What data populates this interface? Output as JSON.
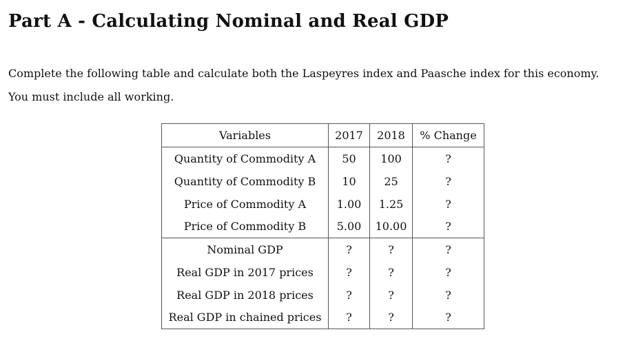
{
  "heading": "Part A - Calculating Nominal and Real GDP",
  "paragraphs": [
    "Complete the following table and calculate both the Laspeyres index and Paasche index for this economy.",
    "You must include all working."
  ],
  "table": {
    "headers": [
      "Variables",
      "2017",
      "2018",
      "% Change"
    ],
    "rows": [
      [
        "Quantity of Commodity A",
        "50",
        "100",
        "?"
      ],
      [
        "Quantity of Commodity B",
        "10",
        "25",
        "?"
      ],
      [
        "Price of Commodity A",
        "1.00",
        "1.25",
        "?"
      ],
      [
        "Price of Commodity B",
        "5.00",
        "10.00",
        "?"
      ],
      [
        "Nominal GDP",
        "?",
        "?",
        "?"
      ],
      [
        "Real GDP in 2017 prices",
        "?",
        "?",
        "?"
      ],
      [
        "Real GDP in 2018 prices",
        "?",
        "?",
        "?"
      ],
      [
        "Real GDP in chained prices",
        "?",
        "?",
        "?"
      ]
    ]
  }
}
